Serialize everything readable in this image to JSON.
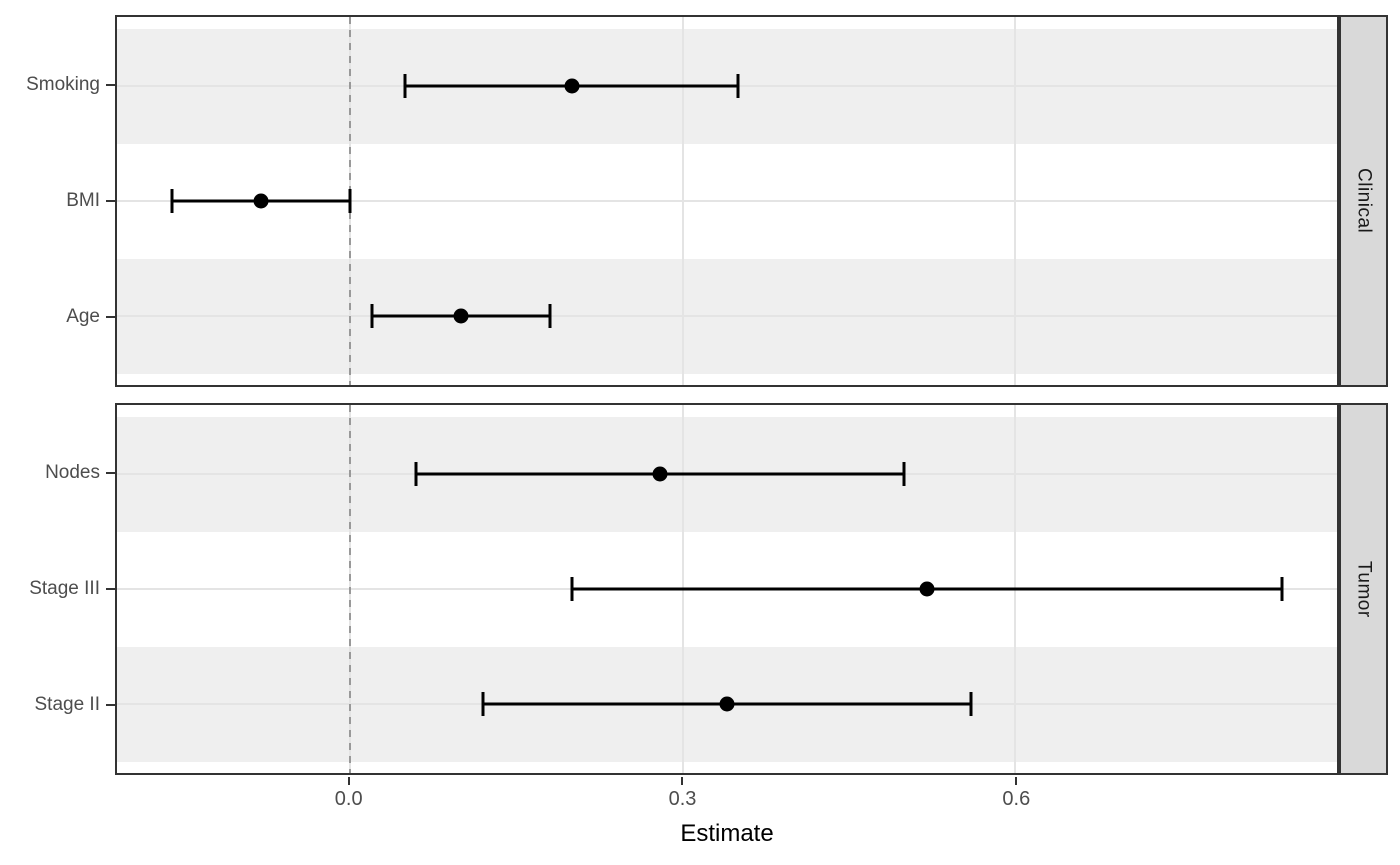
{
  "chart_data": {
    "type": "forest",
    "xlabel": "Estimate",
    "xlim": [
      -0.21,
      0.89
    ],
    "zero_line_x": 0.0,
    "x_ticks": [
      {
        "value": 0.0,
        "label": "0.0"
      },
      {
        "value": 0.3,
        "label": "0.3"
      },
      {
        "value": 0.6,
        "label": "0.6"
      }
    ],
    "legend": "none",
    "grid": "major",
    "facets": [
      {
        "label": "Clinical",
        "rows": [
          {
            "label": "Smoking",
            "estimate": 0.2,
            "ci_low": 0.05,
            "ci_high": 0.35
          },
          {
            "label": "BMI",
            "estimate": -0.08,
            "ci_low": -0.16,
            "ci_high": 0.0
          },
          {
            "label": "Age",
            "estimate": 0.1,
            "ci_low": 0.02,
            "ci_high": 0.18
          }
        ]
      },
      {
        "label": "Tumor",
        "rows": [
          {
            "label": "Nodes",
            "estimate": 0.28,
            "ci_low": 0.06,
            "ci_high": 0.5
          },
          {
            "label": "Stage III",
            "estimate": 0.52,
            "ci_low": 0.2,
            "ci_high": 0.84
          },
          {
            "label": "Stage II",
            "estimate": 0.34,
            "ci_low": 0.12,
            "ci_high": 0.56
          }
        ]
      }
    ],
    "colors": {
      "stripe": "#efefef",
      "grid": "#e4e4e4",
      "zero_line": "#999999",
      "panel_border": "#333333",
      "strip_bg": "#d9d9d9",
      "axis_text": "#4d4d4d",
      "point": "#000000"
    }
  }
}
